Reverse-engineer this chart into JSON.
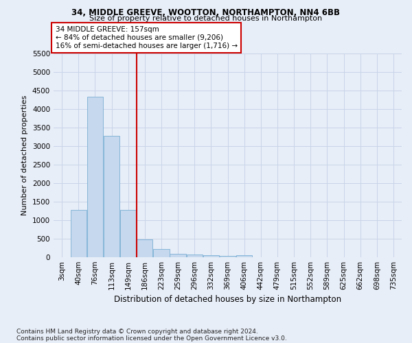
{
  "title1": "34, MIDDLE GREEVE, WOOTTON, NORTHAMPTON, NN4 6BB",
  "title2": "Size of property relative to detached houses in Northampton",
  "xlabel": "Distribution of detached houses by size in Northampton",
  "ylabel": "Number of detached properties",
  "footnote1": "Contains HM Land Registry data © Crown copyright and database right 2024.",
  "footnote2": "Contains public sector information licensed under the Open Government Licence v3.0.",
  "annotation_title": "34 MIDDLE GREEVE: 157sqm",
  "annotation_line1": "← 84% of detached houses are smaller (9,206)",
  "annotation_line2": "16% of semi-detached houses are larger (1,716) →",
  "bar_labels": [
    "3sqm",
    "40sqm",
    "76sqm",
    "113sqm",
    "149sqm",
    "186sqm",
    "223sqm",
    "259sqm",
    "296sqm",
    "332sqm",
    "369sqm",
    "406sqm",
    "442sqm",
    "479sqm",
    "515sqm",
    "552sqm",
    "589sqm",
    "625sqm",
    "662sqm",
    "698sqm",
    "735sqm"
  ],
  "bar_values": [
    0,
    1270,
    4330,
    3280,
    1270,
    475,
    215,
    100,
    70,
    50,
    30,
    55,
    0,
    0,
    0,
    0,
    0,
    0,
    0,
    0,
    0
  ],
  "bar_color": "#c5d8ed",
  "bar_edge_color": "#7aafd4",
  "grid_color": "#c8d4e8",
  "background_color": "#e8eef8",
  "vline_x": 4.5,
  "vline_color": "#cc0000",
  "ylim": [
    0,
    5500
  ],
  "ytick_interval": 500,
  "annotation_box_color": "#ffffff",
  "annotation_box_edge": "#cc0000",
  "title1_fontsize": 8.5,
  "title2_fontsize": 8.0,
  "ylabel_fontsize": 8.0,
  "xlabel_fontsize": 8.5,
  "tick_fontsize": 7.5,
  "annot_fontsize": 7.5,
  "footnote_fontsize": 6.5
}
